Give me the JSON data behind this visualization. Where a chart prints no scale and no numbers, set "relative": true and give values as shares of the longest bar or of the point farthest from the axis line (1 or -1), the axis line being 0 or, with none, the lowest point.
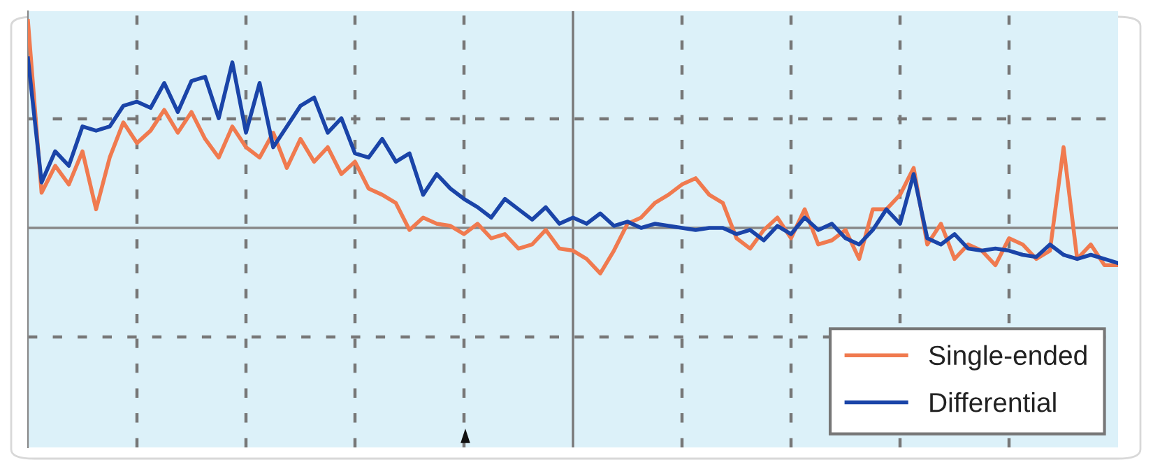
{
  "chart_data": {
    "type": "line",
    "relative": true,
    "categories": [
      null,
      null,
      null,
      null,
      null,
      null,
      null,
      null,
      null,
      null,
      null,
      null,
      null,
      null,
      null,
      null,
      null,
      null,
      null,
      null,
      null,
      null,
      null,
      null,
      null,
      null,
      null,
      null,
      null,
      null,
      null,
      null,
      null,
      null,
      null,
      null,
      null,
      null,
      null,
      null,
      null,
      null,
      null,
      null,
      null,
      null,
      null,
      null,
      null,
      null,
      null,
      null,
      null,
      null,
      null,
      null,
      null,
      null,
      null,
      null,
      null,
      null,
      null,
      null,
      null,
      null,
      null,
      null,
      null,
      null,
      null,
      null,
      null,
      null,
      null,
      null,
      null,
      null,
      null,
      null,
      null
    ],
    "series": [
      {
        "name": "Single-ended",
        "color": "#f07a4f",
        "values": [
          1.0,
          0.17,
          0.3,
          0.21,
          0.37,
          0.09,
          0.34,
          0.51,
          0.41,
          0.47,
          0.57,
          0.46,
          0.56,
          0.43,
          0.34,
          0.49,
          0.39,
          0.34,
          0.46,
          0.29,
          0.43,
          0.32,
          0.39,
          0.26,
          0.32,
          0.19,
          0.16,
          0.12,
          -0.01,
          0.05,
          0.02,
          0.01,
          -0.03,
          0.02,
          -0.05,
          -0.03,
          -0.1,
          -0.08,
          -0.01,
          -0.1,
          -0.11,
          -0.15,
          -0.22,
          -0.11,
          0.02,
          0.05,
          0.12,
          0.16,
          0.21,
          0.24,
          0.16,
          0.12,
          -0.05,
          -0.1,
          -0.01,
          0.05,
          -0.05,
          0.09,
          -0.08,
          -0.06,
          -0.01,
          -0.15,
          0.09,
          0.09,
          0.16,
          0.29,
          -0.08,
          0.02,
          -0.15,
          -0.08,
          -0.11,
          -0.18,
          -0.05,
          -0.08,
          -0.15,
          -0.11,
          0.39,
          -0.15,
          -0.08,
          -0.18,
          -0.18
        ]
      },
      {
        "name": "Differential",
        "color": "#1a44a8",
        "values": [
          0.82,
          0.22,
          0.37,
          0.3,
          0.49,
          0.47,
          0.49,
          0.59,
          0.61,
          0.58,
          0.7,
          0.56,
          0.71,
          0.73,
          0.53,
          0.8,
          0.46,
          0.7,
          0.39,
          0.49,
          0.59,
          0.63,
          0.46,
          0.53,
          0.36,
          0.34,
          0.43,
          0.32,
          0.36,
          0.16,
          0.26,
          0.19,
          0.14,
          0.1,
          0.05,
          0.14,
          0.09,
          0.04,
          0.1,
          0.02,
          0.05,
          0.02,
          0.07,
          0.01,
          0.03,
          0.0,
          0.02,
          0.01,
          0.0,
          -0.01,
          0.0,
          0.0,
          -0.03,
          -0.01,
          -0.06,
          0.01,
          -0.03,
          0.05,
          -0.01,
          0.02,
          -0.05,
          -0.08,
          -0.01,
          0.09,
          0.02,
          0.26,
          -0.05,
          -0.08,
          -0.03,
          -0.1,
          -0.11,
          -0.1,
          -0.11,
          -0.13,
          -0.14,
          -0.08,
          -0.13,
          -0.15,
          -0.13,
          -0.15,
          -0.17
        ]
      }
    ],
    "grid": true,
    "legend": "bottom right",
    "line_style": "solid",
    "marker": "none"
  }
}
